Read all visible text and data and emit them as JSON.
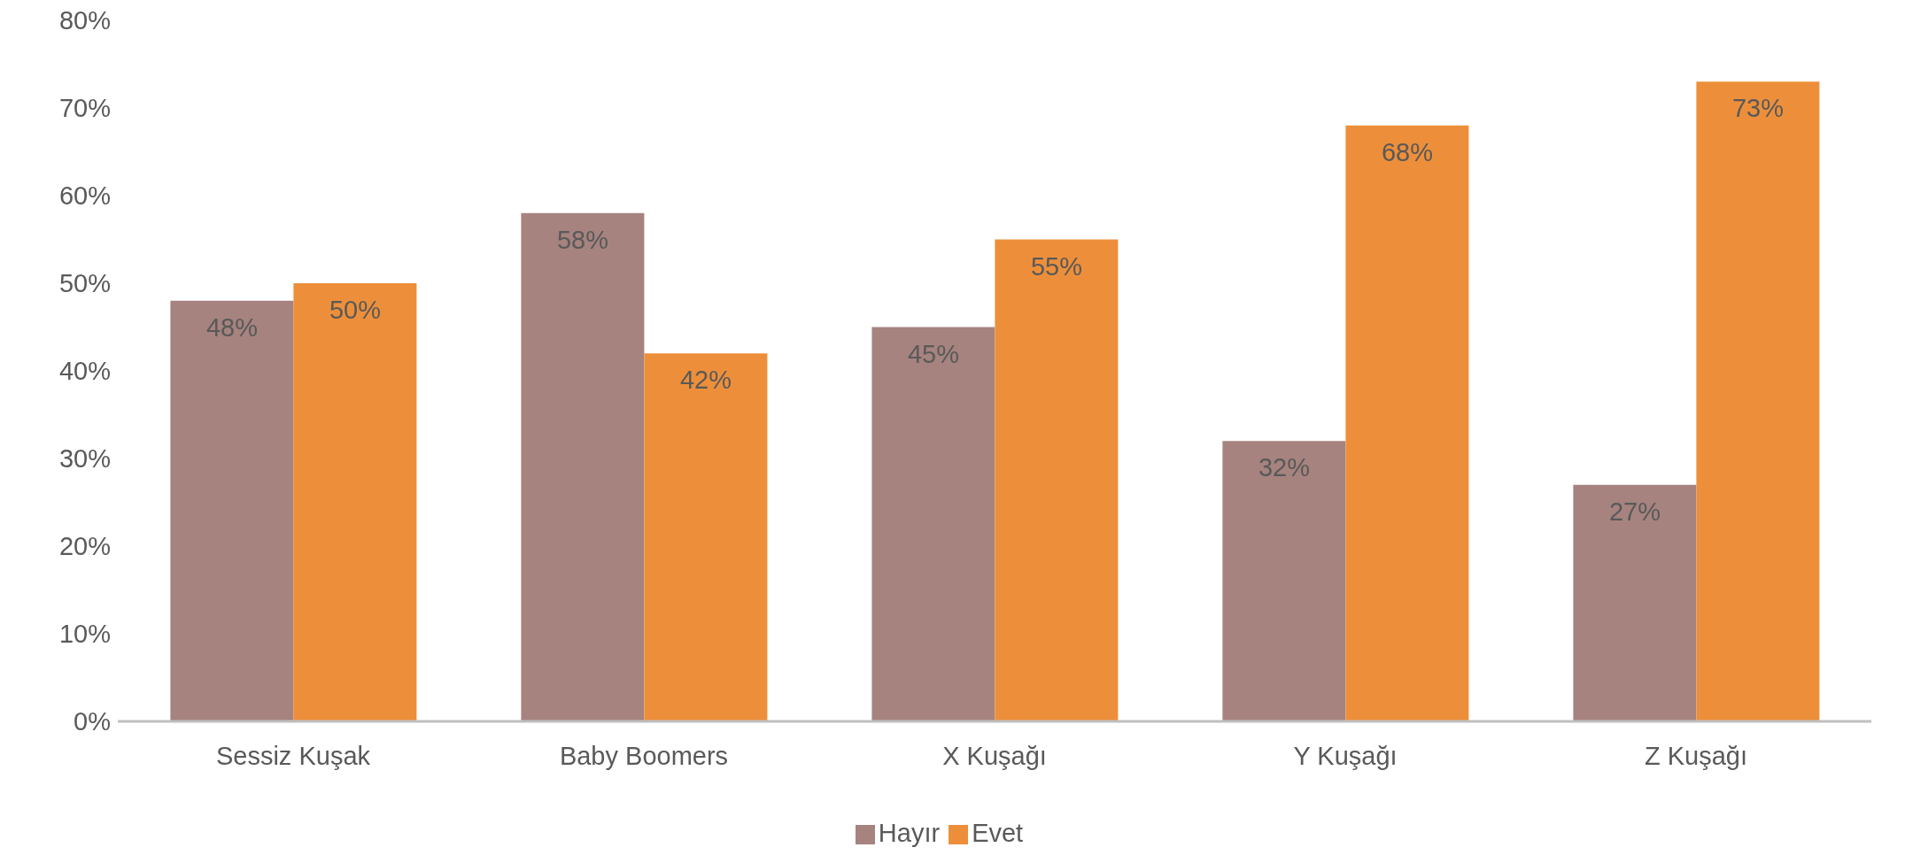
{
  "chart_data": {
    "type": "bar",
    "categories": [
      "Sessiz Kuşak",
      "Baby Boomers",
      "X Kuşağı",
      "Y Kuşağı",
      "Z Kuşağı"
    ],
    "series": [
      {
        "name": "Hayır",
        "color": "#a6837f",
        "values": [
          48,
          58,
          45,
          32,
          27
        ],
        "value_labels": [
          "48%",
          "58%",
          "45%",
          "32%",
          "27%"
        ]
      },
      {
        "name": "Evet",
        "color": "#ed8f3a",
        "values": [
          50,
          42,
          55,
          68,
          73
        ],
        "value_labels": [
          "50%",
          "42%",
          "55%",
          "68%",
          "73%"
        ]
      }
    ],
    "ylim": [
      0,
      80
    ],
    "yticks": [
      {
        "value": 0,
        "label": "0%"
      },
      {
        "value": 10,
        "label": "10%"
      },
      {
        "value": 20,
        "label": "20%"
      },
      {
        "value": 30,
        "label": "30%"
      },
      {
        "value": 40,
        "label": "40%"
      },
      {
        "value": 50,
        "label": "50%"
      },
      {
        "value": 60,
        "label": "60%"
      },
      {
        "value": 70,
        "label": "70%"
      },
      {
        "value": 80,
        "label": "80%"
      }
    ],
    "grid": false,
    "legend": "bottom"
  }
}
